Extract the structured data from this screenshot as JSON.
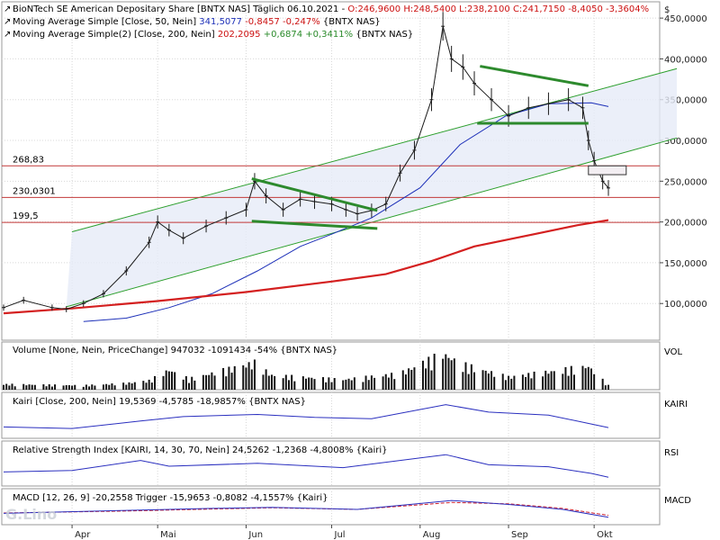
{
  "chart_data": [
    {
      "type": "candlestick",
      "pane": "price",
      "header": {
        "symbol": "BioNTech SE American Depositary Share [BNTX NAS]",
        "period": "Täglich",
        "date": "06.10.2021",
        "ohlc": "O:246,9600 H:248,5400 L:238,2100 C:241,7150",
        "change": "-8,4050 -3,3604%"
      },
      "currency_label": "$",
      "x_axis": {
        "type": "date",
        "ticks": [
          "Apr",
          "Mai",
          "Jun",
          "Jul",
          "Aug",
          "Sep",
          "Okt"
        ]
      },
      "y_axis": {
        "scale": "linear",
        "range": [
          55,
          470
        ],
        "ticks": [
          "100,0000",
          "150,0000",
          "200,0000",
          "250,0000",
          "300,0000",
          "350,0000",
          "400,0000",
          "450,0000"
        ],
        "tick_values": [
          100,
          150,
          200,
          250,
          300,
          350,
          400,
          450
        ]
      },
      "series": [
        {
          "name": "Moving Average Simple [Close, 50, Nein]",
          "values_text": "341,5077",
          "change_text": "-0,8457 -0,247%",
          "source": "{BNTX NAS}",
          "color": "#1c2fb8",
          "points": [
            [
              "2021-04-05",
              78
            ],
            [
              "2021-04-20",
              82
            ],
            [
              "2021-05-05",
              95
            ],
            [
              "2021-05-20",
              112
            ],
            [
              "2021-06-05",
              140
            ],
            [
              "2021-06-20",
              170
            ],
            [
              "2021-07-01",
              185
            ],
            [
              "2021-07-15",
              205
            ],
            [
              "2021-08-01",
              242
            ],
            [
              "2021-08-15",
              295
            ],
            [
              "2021-08-31",
              330
            ],
            [
              "2021-09-15",
              345
            ],
            [
              "2021-09-30",
              346
            ],
            [
              "2021-10-06",
              341.5
            ]
          ]
        },
        {
          "name": "Moving Average Simple(2) [Close, 200, Nein]",
          "values_text": "202,2095",
          "change_text": "+0,6874 +0,3411%",
          "source": "{BNTX NAS}",
          "color": "#d42020",
          "points": [
            [
              "2021-03-08",
              88
            ],
            [
              "2021-04-01",
              94
            ],
            [
              "2021-05-01",
              103
            ],
            [
              "2021-06-01",
              114
            ],
            [
              "2021-07-01",
              127
            ],
            [
              "2021-07-20",
              136
            ],
            [
              "2021-08-05",
              152
            ],
            [
              "2021-08-20",
              170
            ],
            [
              "2021-09-10",
              185
            ],
            [
              "2021-09-25",
              196
            ],
            [
              "2021-10-06",
              202.2
            ]
          ]
        }
      ],
      "close_points": [
        [
          "2021-03-08",
          95
        ],
        [
          "2021-03-15",
          104
        ],
        [
          "2021-03-25",
          95
        ],
        [
          "2021-03-30",
          93
        ],
        [
          "2021-04-05",
          100
        ],
        [
          "2021-04-12",
          112
        ],
        [
          "2021-04-20",
          140
        ],
        [
          "2021-04-28",
          175
        ],
        [
          "2021-05-01",
          200
        ],
        [
          "2021-05-05",
          190
        ],
        [
          "2021-05-10",
          180
        ],
        [
          "2021-05-18",
          195
        ],
        [
          "2021-05-25",
          205
        ],
        [
          "2021-06-01",
          215
        ],
        [
          "2021-06-04",
          250
        ],
        [
          "2021-06-08",
          232
        ],
        [
          "2021-06-14",
          215
        ],
        [
          "2021-06-20",
          228
        ],
        [
          "2021-06-25",
          225
        ],
        [
          "2021-07-01",
          222
        ],
        [
          "2021-07-06",
          215
        ],
        [
          "2021-07-10",
          210
        ],
        [
          "2021-07-15",
          214
        ],
        [
          "2021-07-20",
          222
        ],
        [
          "2021-07-25",
          260
        ],
        [
          "2021-07-30",
          288
        ],
        [
          "2021-08-05",
          350
        ],
        [
          "2021-08-09",
          440
        ],
        [
          "2021-08-12",
          400
        ],
        [
          "2021-08-16",
          390
        ],
        [
          "2021-08-20",
          370
        ],
        [
          "2021-08-26",
          350
        ],
        [
          "2021-09-01",
          330
        ],
        [
          "2021-09-08",
          340
        ],
        [
          "2021-09-15",
          345
        ],
        [
          "2021-09-22",
          350
        ],
        [
          "2021-09-27",
          340
        ],
        [
          "2021-09-29",
          300
        ],
        [
          "2021-10-01",
          275
        ],
        [
          "2021-10-04",
          250
        ],
        [
          "2021-10-06",
          241.7
        ]
      ],
      "horizontal_lines": [
        {
          "label": "268,83",
          "value": 268.83,
          "color": "#c23838"
        },
        {
          "label": "230,0301",
          "value": 230.03,
          "color": "#c23838"
        },
        {
          "label": "199,5",
          "value": 199.5,
          "color": "#c23838"
        }
      ],
      "trend_channel": {
        "upper": [
          [
            "2021-04-01",
            188
          ],
          [
            "2021-10-30",
            388
          ]
        ],
        "lower": [
          [
            "2021-03-30",
            96
          ],
          [
            "2021-10-30",
            303
          ]
        ],
        "fill": "#e6ebf7",
        "line_color": "#2c9f2c"
      },
      "pattern_lines": [
        {
          "points": [
            [
              "2021-06-03",
              253
            ],
            [
              "2021-07-17",
              214
            ]
          ],
          "color": "#2d8a2d"
        },
        {
          "points": [
            [
              "2021-06-03",
              201
            ],
            [
              "2021-07-17",
              192
            ]
          ],
          "color": "#2d8a2d"
        },
        {
          "points": [
            [
              "2021-08-22",
              391
            ],
            [
              "2021-09-29",
              367
            ]
          ],
          "color": "#2d8a2d"
        },
        {
          "points": [
            [
              "2021-08-21",
              321
            ],
            [
              "2021-09-29",
              321
            ]
          ],
          "color": "#2d8a2d"
        }
      ],
      "ylim": [
        55,
        470
      ]
    },
    {
      "type": "bar",
      "pane": "volume",
      "label": "VOL",
      "title_text": "Volume [None, Nein, PriceChange]",
      "value_text": "947032",
      "change_text": "-1091434 -54%",
      "source": "{BNTX NAS}",
      "values": [
        [
          "2021-03-10",
          0.15
        ],
        [
          "2021-04-05",
          0.12
        ],
        [
          "2021-04-20",
          0.18
        ],
        [
          "2021-04-28",
          0.25
        ],
        [
          "2021-05-05",
          0.55
        ],
        [
          "2021-05-12",
          0.3
        ],
        [
          "2021-06-04",
          0.75
        ],
        [
          "2021-06-10",
          0.4
        ],
        [
          "2021-07-05",
          0.28
        ],
        [
          "2021-07-25",
          0.45
        ],
        [
          "2021-08-09",
          1.0
        ],
        [
          "2021-08-16",
          0.7
        ],
        [
          "2021-09-01",
          0.35
        ],
        [
          "2021-09-29",
          0.65
        ],
        [
          "2021-10-06",
          0.12
        ]
      ]
    },
    {
      "type": "line",
      "pane": "kairi",
      "label": "KAIRI",
      "title_text": "Kairi [Close, 200, Nein]",
      "value_text": "19,5369",
      "change_text": "-4,5785 -18,9857%",
      "source": "{BNTX NAS}",
      "color": "#2a2fbf",
      "values": [
        [
          "2021-03-08",
          0.2
        ],
        [
          "2021-04-01",
          0.15
        ],
        [
          "2021-04-25",
          0.4
        ],
        [
          "2021-05-10",
          0.55
        ],
        [
          "2021-06-05",
          0.62
        ],
        [
          "2021-06-25",
          0.52
        ],
        [
          "2021-07-15",
          0.48
        ],
        [
          "2021-08-10",
          0.95
        ],
        [
          "2021-08-25",
          0.7
        ],
        [
          "2021-09-15",
          0.6
        ],
        [
          "2021-09-30",
          0.3
        ],
        [
          "2021-10-06",
          0.18
        ]
      ]
    },
    {
      "type": "line",
      "pane": "rsi",
      "label": "RSI",
      "title_text": "Relative Strength Index [KAIRI, 14, 30, 70, Nein]",
      "value_text": "24,5262",
      "change_text": "-1,2368 -4,8008%",
      "source": "{Kairi}",
      "color": "#2a2fbf",
      "values": [
        [
          "2021-03-08",
          0.3
        ],
        [
          "2021-04-01",
          0.35
        ],
        [
          "2021-04-25",
          0.7
        ],
        [
          "2021-05-05",
          0.5
        ],
        [
          "2021-06-05",
          0.6
        ],
        [
          "2021-07-05",
          0.45
        ],
        [
          "2021-08-10",
          0.9
        ],
        [
          "2021-08-25",
          0.55
        ],
        [
          "2021-09-15",
          0.48
        ],
        [
          "2021-09-30",
          0.25
        ],
        [
          "2021-10-06",
          0.12
        ]
      ]
    },
    {
      "type": "line",
      "pane": "macd",
      "label": "MACD",
      "title_text": "MACD [12, 26, 9]",
      "value_text": "-20,2558",
      "trigger_text": "Trigger -15,9653",
      "change_text": "-0,8082 -4,1557%",
      "source": "{Kairi}",
      "macd_color": "#2a2fbf",
      "trigger_color": "#cc2030",
      "macd": [
        [
          "2021-03-08",
          0.3
        ],
        [
          "2021-04-20",
          0.45
        ],
        [
          "2021-05-20",
          0.55
        ],
        [
          "2021-06-10",
          0.6
        ],
        [
          "2021-07-10",
          0.5
        ],
        [
          "2021-08-12",
          0.95
        ],
        [
          "2021-09-01",
          0.75
        ],
        [
          "2021-09-20",
          0.5
        ],
        [
          "2021-10-06",
          0.1
        ]
      ],
      "trigger": [
        [
          "2021-03-08",
          0.32
        ],
        [
          "2021-04-20",
          0.42
        ],
        [
          "2021-05-20",
          0.52
        ],
        [
          "2021-06-10",
          0.58
        ],
        [
          "2021-07-10",
          0.5
        ],
        [
          "2021-08-12",
          0.85
        ],
        [
          "2021-09-01",
          0.78
        ],
        [
          "2021-09-20",
          0.55
        ],
        [
          "2021-10-06",
          0.2
        ]
      ]
    }
  ],
  "ui": {
    "logo_text": "G.Lino",
    "date_start": "2021-03-08",
    "date_end": "2021-10-06",
    "month_ticks": [
      [
        "Apr",
        "2021-04-01"
      ],
      [
        "Mai",
        "2021-05-01"
      ],
      [
        "Jun",
        "2021-06-01"
      ],
      [
        "Jul",
        "2021-07-01"
      ],
      [
        "Aug",
        "2021-08-01"
      ],
      [
        "Sep",
        "2021-09-01"
      ],
      [
        "Okt",
        "2021-10-01"
      ]
    ]
  }
}
